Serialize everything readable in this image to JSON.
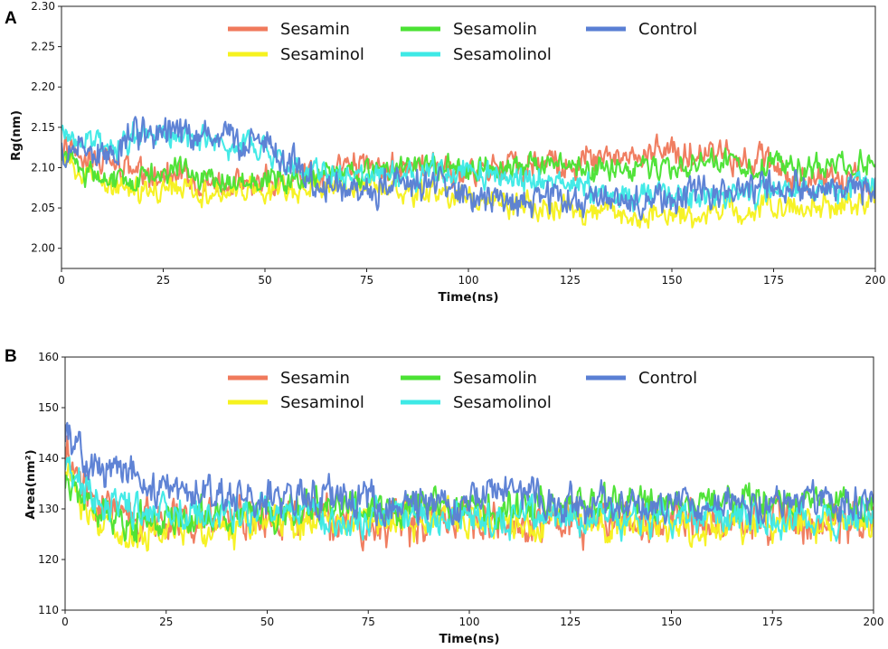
{
  "colors": {
    "Sesamin": "#f07a5c",
    "Sesaminol": "#f6f21f",
    "Sesamolin": "#4be234",
    "Sesamolinol": "#3ee9e6",
    "Control": "#5a7fd4"
  },
  "chart_data": [
    {
      "panel_label": "A",
      "type": "line",
      "title": "",
      "xlabel": "Time(ns)",
      "ylabel": "Rg(nm)",
      "xlim": [
        0,
        200
      ],
      "ylim": [
        1.975,
        2.3
      ],
      "xticks": [
        "0",
        "25",
        "50",
        "75",
        "100",
        "125",
        "150",
        "175",
        "200"
      ],
      "yticks": [
        "2.00",
        "2.05",
        "2.10",
        "2.15",
        "2.20",
        "2.25",
        "2.30"
      ],
      "legend_position": "top-center",
      "legend": [
        "Sesamin",
        "Sesamolin",
        "Control",
        "Sesaminol",
        "Sesamolinol"
      ],
      "draw_order": [
        "Sesamin",
        "Sesaminol",
        "Sesamolin",
        "Sesamolinol",
        "Control"
      ],
      "series": [
        {
          "name": "Sesamin",
          "x": [
            0,
            10,
            20,
            30,
            40,
            50,
            60,
            70,
            80,
            90,
            100,
            110,
            120,
            130,
            140,
            150,
            160,
            170,
            180,
            190,
            200
          ],
          "values": [
            2.12,
            2.11,
            2.09,
            2.085,
            2.08,
            2.085,
            2.09,
            2.1,
            2.1,
            2.095,
            2.09,
            2.1,
            2.105,
            2.11,
            2.115,
            2.12,
            2.12,
            2.11,
            2.09,
            2.085,
            2.085
          ],
          "noise": 0.014
        },
        {
          "name": "Sesaminol",
          "x": [
            0,
            10,
            20,
            30,
            40,
            50,
            60,
            70,
            80,
            90,
            100,
            110,
            120,
            130,
            140,
            150,
            160,
            170,
            180,
            190,
            200
          ],
          "values": [
            2.11,
            2.075,
            2.07,
            2.075,
            2.07,
            2.07,
            2.075,
            2.08,
            2.075,
            2.07,
            2.06,
            2.055,
            2.05,
            2.045,
            2.045,
            2.04,
            2.045,
            2.05,
            2.05,
            2.055,
            2.06
          ],
          "noise": 0.012
        },
        {
          "name": "Sesamolin",
          "x": [
            0,
            10,
            20,
            30,
            40,
            50,
            60,
            70,
            80,
            90,
            100,
            110,
            120,
            130,
            140,
            150,
            160,
            170,
            180,
            190,
            200
          ],
          "values": [
            2.115,
            2.085,
            2.09,
            2.095,
            2.085,
            2.085,
            2.09,
            2.095,
            2.1,
            2.1,
            2.095,
            2.1,
            2.105,
            2.1,
            2.1,
            2.1,
            2.105,
            2.105,
            2.1,
            2.1,
            2.105
          ],
          "noise": 0.012
        },
        {
          "name": "Sesamolinol",
          "x": [
            0,
            10,
            20,
            30,
            40,
            50,
            60,
            70,
            80,
            90,
            100,
            110,
            120,
            130,
            140,
            150,
            160,
            170,
            180,
            190,
            200
          ],
          "values": [
            2.14,
            2.125,
            2.14,
            2.135,
            2.13,
            2.12,
            2.095,
            2.09,
            2.09,
            2.095,
            2.095,
            2.09,
            2.085,
            2.07,
            2.065,
            2.065,
            2.065,
            2.07,
            2.075,
            2.075,
            2.075
          ],
          "noise": 0.013
        },
        {
          "name": "Control",
          "x": [
            0,
            10,
            20,
            30,
            40,
            50,
            60,
            70,
            80,
            90,
            100,
            110,
            120,
            130,
            140,
            150,
            160,
            170,
            180,
            190,
            200
          ],
          "values": [
            2.125,
            2.115,
            2.145,
            2.14,
            2.13,
            2.13,
            2.09,
            2.075,
            2.075,
            2.08,
            2.06,
            2.055,
            2.065,
            2.06,
            2.055,
            2.065,
            2.07,
            2.07,
            2.075,
            2.08,
            2.075
          ],
          "noise": 0.016
        }
      ]
    },
    {
      "panel_label": "B",
      "type": "line",
      "title": "",
      "xlabel": "Time(ns)",
      "ylabel": "Area(nm²)",
      "xlim": [
        0,
        200
      ],
      "ylim": [
        110,
        160
      ],
      "xticks": [
        "0",
        "25",
        "50",
        "75",
        "100",
        "125",
        "150",
        "175",
        "200"
      ],
      "yticks": [
        "110",
        "120",
        "130",
        "140",
        "150",
        "160"
      ],
      "legend_position": "top-center",
      "legend": [
        "Sesamin",
        "Sesamolin",
        "Control",
        "Sesaminol",
        "Sesamolinol"
      ],
      "draw_order": [
        "Sesamin",
        "Sesaminol",
        "Sesamolin",
        "Sesamolinol",
        "Control"
      ],
      "series": [
        {
          "name": "Sesamin",
          "x": [
            0,
            5,
            10,
            20,
            30,
            40,
            50,
            60,
            70,
            80,
            90,
            100,
            110,
            120,
            130,
            140,
            150,
            160,
            170,
            180,
            190,
            200
          ],
          "values": [
            144,
            133,
            130,
            128,
            128,
            128,
            128,
            128,
            127,
            127,
            128,
            128,
            128,
            128,
            128,
            128,
            128,
            128,
            128,
            128,
            128,
            128
          ],
          "noise": 3.2
        },
        {
          "name": "Sesaminol",
          "x": [
            0,
            5,
            10,
            20,
            30,
            40,
            50,
            60,
            70,
            80,
            90,
            100,
            110,
            120,
            130,
            140,
            150,
            160,
            170,
            180,
            190,
            200
          ],
          "values": [
            138,
            128,
            126,
            126,
            126,
            126,
            127,
            127,
            127,
            128,
            128,
            128,
            127,
            127,
            127,
            127,
            127,
            127,
            127,
            127,
            127,
            127
          ],
          "noise": 2.6
        },
        {
          "name": "Sesamolin",
          "x": [
            0,
            5,
            10,
            20,
            30,
            40,
            50,
            60,
            70,
            80,
            90,
            100,
            110,
            120,
            130,
            140,
            150,
            160,
            170,
            180,
            190,
            200
          ],
          "values": [
            136,
            131,
            129,
            128,
            128,
            129,
            129,
            130,
            130,
            130,
            130,
            130,
            130,
            131,
            131,
            131,
            131,
            131,
            131,
            131,
            131,
            131
          ],
          "noise": 2.6
        },
        {
          "name": "Sesamolinol",
          "x": [
            0,
            5,
            10,
            20,
            30,
            40,
            50,
            60,
            70,
            80,
            90,
            100,
            110,
            120,
            130,
            140,
            150,
            160,
            170,
            180,
            190,
            200
          ],
          "values": [
            140,
            133,
            131,
            130,
            129,
            129,
            129,
            129,
            128,
            128,
            128,
            128,
            128,
            128,
            128,
            128,
            128,
            128,
            128,
            128,
            128,
            128
          ],
          "noise": 2.6
        },
        {
          "name": "Control",
          "x": [
            0,
            5,
            10,
            15,
            20,
            30,
            40,
            50,
            60,
            70,
            80,
            90,
            100,
            110,
            120,
            130,
            140,
            150,
            160,
            170,
            180,
            190,
            200
          ],
          "values": [
            146,
            140,
            138,
            137,
            135,
            134,
            133,
            132,
            132,
            132,
            131,
            131,
            131,
            135,
            131,
            131,
            131,
            131,
            131,
            131,
            132,
            132,
            132
          ],
          "noise": 2.8
        }
      ]
    }
  ]
}
